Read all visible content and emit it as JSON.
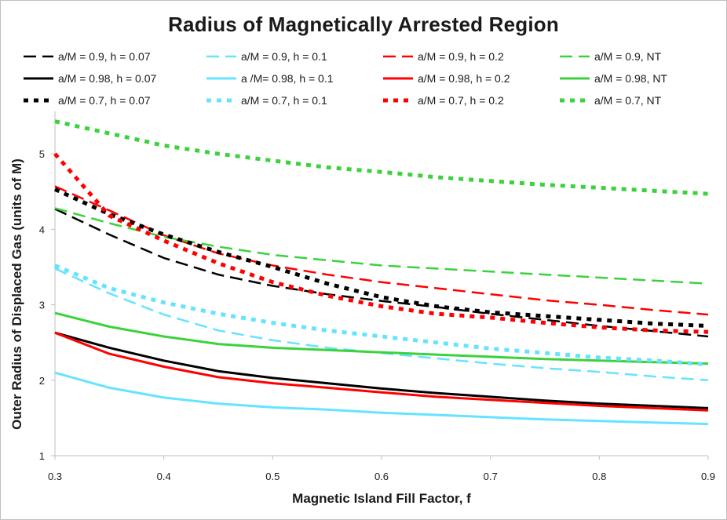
{
  "chart_data": {
    "type": "line",
    "title": "Radius of Magnetically Arrested Region",
    "xlabel": "Magnetic Island Fill Factor, f",
    "ylabel": "Outer Radius of Displaced Gas (units of M)",
    "xlim": [
      0.3,
      0.9
    ],
    "ylim": [
      1,
      5.5
    ],
    "xticks": [
      0.3,
      0.4,
      0.5,
      0.6,
      0.7,
      0.8,
      0.9
    ],
    "xtick_labels": [
      "0.3",
      "0.4",
      "0.5",
      "0.6",
      "0.7",
      "0.8",
      "0.9"
    ],
    "yticks": [
      1,
      2,
      3,
      4,
      5
    ],
    "ytick_labels": [
      "1",
      "2",
      "3",
      "4",
      "5"
    ],
    "grid": false,
    "legend_position": "top",
    "x": [
      0.3,
      0.35,
      0.4,
      0.45,
      0.5,
      0.55,
      0.6,
      0.65,
      0.7,
      0.75,
      0.8,
      0.85,
      0.9
    ],
    "series": [
      {
        "name": "a/M = 0.9, h = 0.07",
        "color": "#000000",
        "style": "dashed",
        "values": [
          4.27,
          3.93,
          3.62,
          3.4,
          3.25,
          3.14,
          3.05,
          2.97,
          2.88,
          2.8,
          2.72,
          2.65,
          2.58
        ]
      },
      {
        "name": "a/M = 0.9, h = 0.1",
        "color": "#66e3ff",
        "style": "dashed",
        "values": [
          3.48,
          3.15,
          2.87,
          2.66,
          2.53,
          2.43,
          2.36,
          2.29,
          2.22,
          2.16,
          2.11,
          2.05,
          2.0
        ]
      },
      {
        "name": "a/M = 0.9, h = 0.2",
        "color": "#ff0000",
        "style": "dashed",
        "values": [
          4.57,
          4.25,
          3.92,
          3.68,
          3.52,
          3.4,
          3.3,
          3.22,
          3.14,
          3.06,
          3.0,
          2.93,
          2.87
        ]
      },
      {
        "name": "a/M = 0.9, NT",
        "color": "#3cd23c",
        "style": "dashed",
        "values": [
          4.28,
          4.08,
          3.9,
          3.77,
          3.66,
          3.59,
          3.52,
          3.48,
          3.44,
          3.4,
          3.36,
          3.32,
          3.28
        ]
      },
      {
        "name": "a/M = 0.98, h = 0.07",
        "color": "#000000",
        "style": "solid",
        "values": [
          2.63,
          2.43,
          2.26,
          2.12,
          2.03,
          1.96,
          1.89,
          1.83,
          1.78,
          1.73,
          1.69,
          1.66,
          1.63
        ]
      },
      {
        "name": "a /M= 0.98, h = 0.1",
        "color": "#66e3ff",
        "style": "solid",
        "values": [
          2.1,
          1.9,
          1.77,
          1.69,
          1.64,
          1.61,
          1.57,
          1.54,
          1.51,
          1.48,
          1.46,
          1.44,
          1.42
        ]
      },
      {
        "name": "a/M = 0.98, h = 0.2",
        "color": "#ff0000",
        "style": "solid",
        "values": [
          2.63,
          2.35,
          2.18,
          2.04,
          1.96,
          1.9,
          1.84,
          1.78,
          1.74,
          1.7,
          1.66,
          1.63,
          1.6
        ]
      },
      {
        "name": "a/M = 0.98, NT",
        "color": "#3cd23c",
        "style": "solid",
        "values": [
          2.89,
          2.71,
          2.58,
          2.48,
          2.43,
          2.4,
          2.37,
          2.34,
          2.31,
          2.28,
          2.26,
          2.24,
          2.22
        ]
      },
      {
        "name": "a/M = 0.7, h = 0.07",
        "color": "#000000",
        "style": "dotted",
        "values": [
          4.53,
          4.2,
          3.93,
          3.7,
          3.5,
          3.28,
          3.1,
          2.98,
          2.9,
          2.85,
          2.8,
          2.75,
          2.72
        ]
      },
      {
        "name": "a/M = 0.7, h = 0.1",
        "color": "#66e3ff",
        "style": "dotted",
        "values": [
          3.52,
          3.22,
          3.03,
          2.88,
          2.76,
          2.66,
          2.58,
          2.5,
          2.42,
          2.36,
          2.3,
          2.26,
          2.21
        ]
      },
      {
        "name": "a/M = 0.7, h = 0.2",
        "color": "#ff0000",
        "style": "dotted",
        "values": [
          5.0,
          4.18,
          3.85,
          3.55,
          3.3,
          3.12,
          2.98,
          2.88,
          2.83,
          2.76,
          2.7,
          2.66,
          2.64
        ]
      },
      {
        "name": "a/M =  0.7, NT",
        "color": "#3cd23c",
        "style": "dotted",
        "values": [
          5.43,
          5.27,
          5.11,
          5.0,
          4.91,
          4.82,
          4.76,
          4.69,
          4.64,
          4.59,
          4.55,
          4.51,
          4.47
        ]
      }
    ]
  }
}
